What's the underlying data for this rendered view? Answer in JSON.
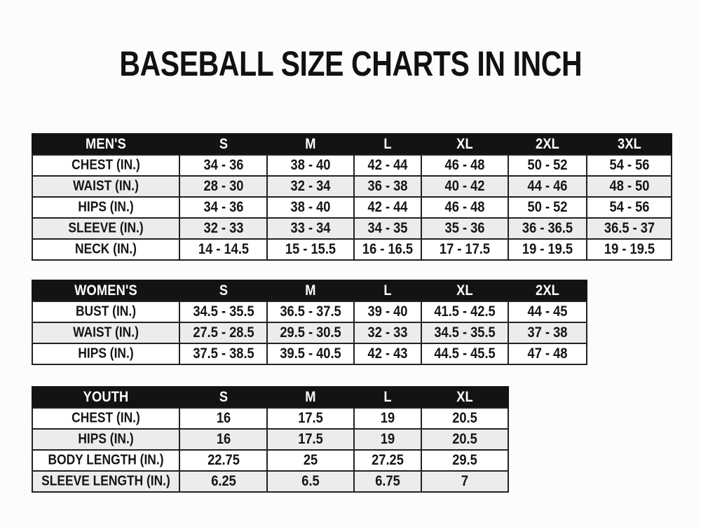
{
  "title": "BASEBALL SIZE CHARTS IN INCH",
  "colors": {
    "page_bg": "#fcfcfc",
    "header_bg": "#131313",
    "header_text": "#ffffff",
    "row_bg": "#ffffff",
    "row_alt_bg": "#ececec",
    "border": "#222222",
    "text": "#151515"
  },
  "chart_data": [
    {
      "type": "table",
      "title": "MEN'S",
      "columns": [
        "S",
        "M",
        "L",
        "XL",
        "2XL",
        "3XL"
      ],
      "rows": [
        {
          "label": "CHEST (IN.)",
          "values": [
            "34 - 36",
            "38 - 40",
            "42 - 44",
            "46 - 48",
            "50 - 52",
            "54 - 56"
          ]
        },
        {
          "label": "WAIST (IN.)",
          "values": [
            "28 - 30",
            "32 - 34",
            "36 - 38",
            "40 - 42",
            "44 - 46",
            "48 - 50"
          ]
        },
        {
          "label": "HIPS (IN.)",
          "values": [
            "34 - 36",
            "38 - 40",
            "42 - 44",
            "46 - 48",
            "50 - 52",
            "54 - 56"
          ]
        },
        {
          "label": "SLEEVE (IN.)",
          "values": [
            "32 - 33",
            "33 - 34",
            "34 - 35",
            "35 - 36",
            "36 - 36.5",
            "36.5 - 37"
          ]
        },
        {
          "label": "NECK (IN.)",
          "values": [
            "14 - 14.5",
            "15 - 15.5",
            "16 - 16.5",
            "17 - 17.5",
            "19 - 19.5",
            "19 - 19.5"
          ]
        }
      ]
    },
    {
      "type": "table",
      "title": "WOMEN'S",
      "columns": [
        "S",
        "M",
        "L",
        "XL",
        "2XL"
      ],
      "rows": [
        {
          "label": "BUST (IN.)",
          "values": [
            "34.5 - 35.5",
            "36.5 - 37.5",
            "39 - 40",
            "41.5 - 42.5",
            "44 - 45"
          ]
        },
        {
          "label": "WAIST (IN.)",
          "values": [
            "27.5 - 28.5",
            "29.5 - 30.5",
            "32 - 33",
            "34.5 - 35.5",
            "37 - 38"
          ]
        },
        {
          "label": "HIPS (IN.)",
          "values": [
            "37.5 - 38.5",
            "39.5 - 40.5",
            "42 - 43",
            "44.5 - 45.5",
            "47 - 48"
          ]
        }
      ]
    },
    {
      "type": "table",
      "title": "YOUTH",
      "columns": [
        "S",
        "M",
        "L",
        "XL"
      ],
      "rows": [
        {
          "label": "CHEST (IN.)",
          "values": [
            "16",
            "17.5",
            "19",
            "20.5"
          ]
        },
        {
          "label": "HIPS (IN.)",
          "values": [
            "16",
            "17.5",
            "19",
            "20.5"
          ]
        },
        {
          "label": "BODY LENGTH (IN.)",
          "values": [
            "22.75",
            "25",
            "27.25",
            "29.5"
          ]
        },
        {
          "label": "SLEEVE LENGTH (IN.)",
          "values": [
            "6.25",
            "6.5",
            "6.75",
            "7"
          ]
        }
      ]
    }
  ]
}
